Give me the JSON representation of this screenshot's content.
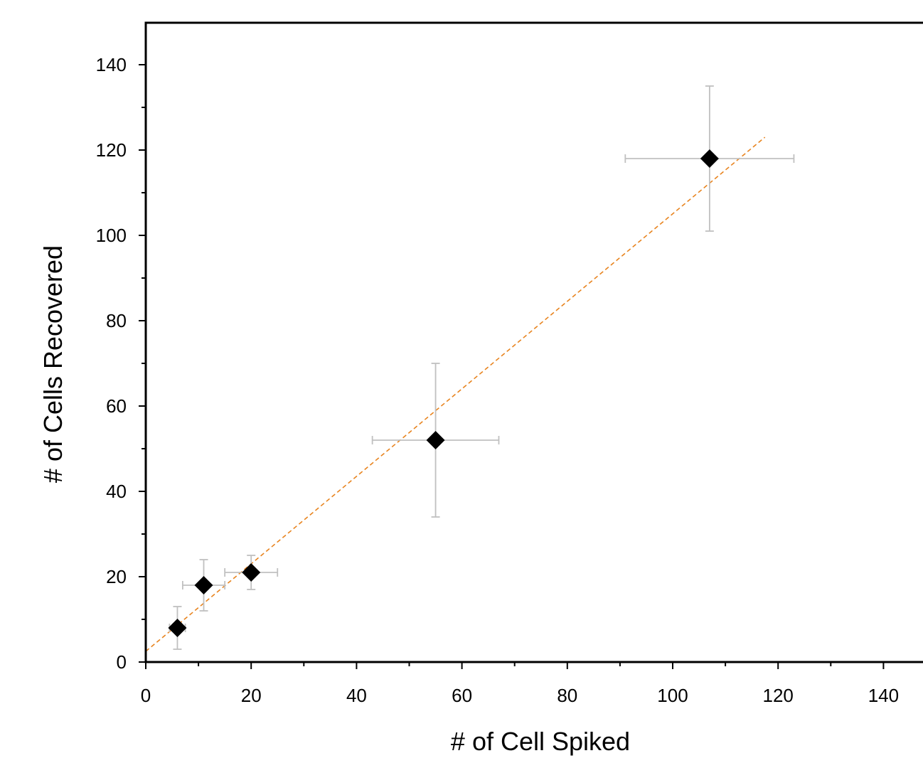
{
  "chart_data": {
    "type": "scatter",
    "xlabel": "# of Cell Spiked",
    "ylabel": "# of Cells Recovered",
    "xlim": [
      0,
      147
    ],
    "ylim": [
      0,
      150
    ],
    "x_ticks": [
      0,
      20,
      40,
      60,
      80,
      100,
      120,
      140
    ],
    "y_ticks": [
      0,
      20,
      40,
      60,
      80,
      100,
      120,
      140
    ],
    "x_tick_labels": [
      "0",
      "20",
      "40",
      "60",
      "80",
      "100",
      "120",
      "140"
    ],
    "y_tick_labels": [
      "0",
      "20",
      "40",
      "60",
      "80",
      "100",
      "120",
      "140"
    ],
    "grid": false,
    "points": [
      {
        "x": 6,
        "y": 8,
        "xerr": 1.5,
        "yerr": 5
      },
      {
        "x": 11,
        "y": 18,
        "xerr": 4,
        "yerr": 6
      },
      {
        "x": 20,
        "y": 21,
        "xerr": 5,
        "yerr": 4
      },
      {
        "x": 55,
        "y": 52,
        "xerr": 12,
        "yerr": 18
      },
      {
        "x": 107,
        "y": 118,
        "xerr": 16,
        "yerr": 17
      }
    ],
    "fit_line": {
      "x_start": 0,
      "y_start": 2.5,
      "x_end": 117.5,
      "y_end": 123,
      "style": "dashed"
    },
    "colors": {
      "marker": "#000000",
      "error_bar": "#c0c0c0",
      "fit_line": "#e8841f",
      "axis": "#000000"
    }
  }
}
